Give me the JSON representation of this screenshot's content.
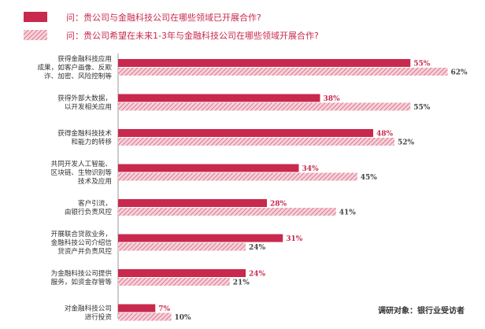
{
  "chart_data": {
    "type": "bar",
    "orientation": "horizontal",
    "title": "",
    "xlabel": "",
    "ylabel": "",
    "xlim": [
      0,
      70
    ],
    "grid": false,
    "legend_position": "top",
    "categories": [
      [
        "获得金融科技应用",
        "成果，如客户画像、反欺",
        "诈、加密、风险控制等"
      ],
      [
        "获得外部大数据，",
        "以开发相关应用"
      ],
      [
        "获得金融科技技术",
        "和能力的转移"
      ],
      [
        "共同开发人工智能、",
        "区块链、生物识别等",
        "技术及应用"
      ],
      [
        "客户引流，",
        "由银行负责风控"
      ],
      [
        "开展联合贷款业务，",
        "金融科技公司介绍信",
        "贷资产并负责风控"
      ],
      [
        "为金融科技公司提供",
        "服务，如资金存管等"
      ],
      [
        "对金融科技公司",
        "进行投资"
      ]
    ],
    "series": [
      {
        "name": "问：贵公司与金融科技公司在哪些领域已开展合作?",
        "color": "#c8294d",
        "pattern": "solid",
        "values": [
          55,
          38,
          48,
          34,
          28,
          31,
          24,
          7
        ],
        "labels": [
          "55%",
          "38%",
          "48%",
          "34%",
          "28%",
          "31%",
          "24%",
          "7%"
        ]
      },
      {
        "name": "问：贵公司希望在未来1-3年与金融科技公司在哪些领域开展合作?",
        "color": "#e07a92",
        "pattern": "hatched",
        "values": [
          62,
          55,
          52,
          45,
          41,
          24,
          21,
          10
        ],
        "labels": [
          "62%",
          "55%",
          "52%",
          "45%",
          "41%",
          "24%",
          "21%",
          "10%"
        ]
      }
    ],
    "annotation": "调研对象：银行业受访者"
  }
}
